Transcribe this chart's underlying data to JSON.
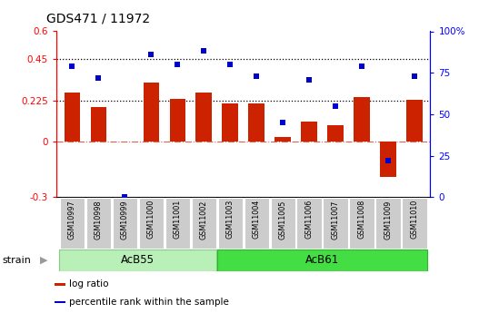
{
  "title": "GDS471 / 11972",
  "samples": [
    "GSM10997",
    "GSM10998",
    "GSM10999",
    "GSM11000",
    "GSM11001",
    "GSM11002",
    "GSM11003",
    "GSM11004",
    "GSM11005",
    "GSM11006",
    "GSM11007",
    "GSM11008",
    "GSM11009",
    "GSM11010"
  ],
  "log_ratio": [
    0.27,
    0.19,
    0.0,
    0.32,
    0.235,
    0.27,
    0.21,
    0.21,
    0.025,
    0.11,
    0.09,
    0.245,
    -0.19,
    0.23
  ],
  "percentile_rank": [
    79,
    72,
    0,
    86,
    80,
    88,
    80,
    73,
    45,
    71,
    55,
    79,
    22,
    73
  ],
  "groups": [
    {
      "label": "AcB55",
      "start": 0,
      "end": 5,
      "color": "#b8f0b8",
      "border": "#88cc88"
    },
    {
      "label": "AcB61",
      "start": 6,
      "end": 13,
      "color": "#44dd44",
      "border": "#22bb22"
    }
  ],
  "bar_color": "#cc2200",
  "scatter_color": "#0000cc",
  "ylim_left": [
    -0.3,
    0.6
  ],
  "ylim_right": [
    0,
    100
  ],
  "yticks_left": [
    -0.3,
    0.0,
    0.225,
    0.45,
    0.6
  ],
  "ytick_labels_left": [
    "-0.3",
    "0",
    "0.225",
    "0.45",
    "0.6"
  ],
  "yticks_right": [
    0,
    25,
    50,
    75,
    100
  ],
  "ytick_labels_right": [
    "0",
    "25",
    "50",
    "75",
    "100%"
  ],
  "hlines": [
    0.45,
    0.225
  ],
  "zero_line": 0.0,
  "bar_width": 0.6,
  "legend_items": [
    {
      "label": "log ratio",
      "color": "#cc2200"
    },
    {
      "label": "percentile rank within the sample",
      "color": "#0000cc"
    }
  ],
  "strain_label": "strain",
  "background_color": "#ffffff",
  "tick_area_color": "#cccccc"
}
